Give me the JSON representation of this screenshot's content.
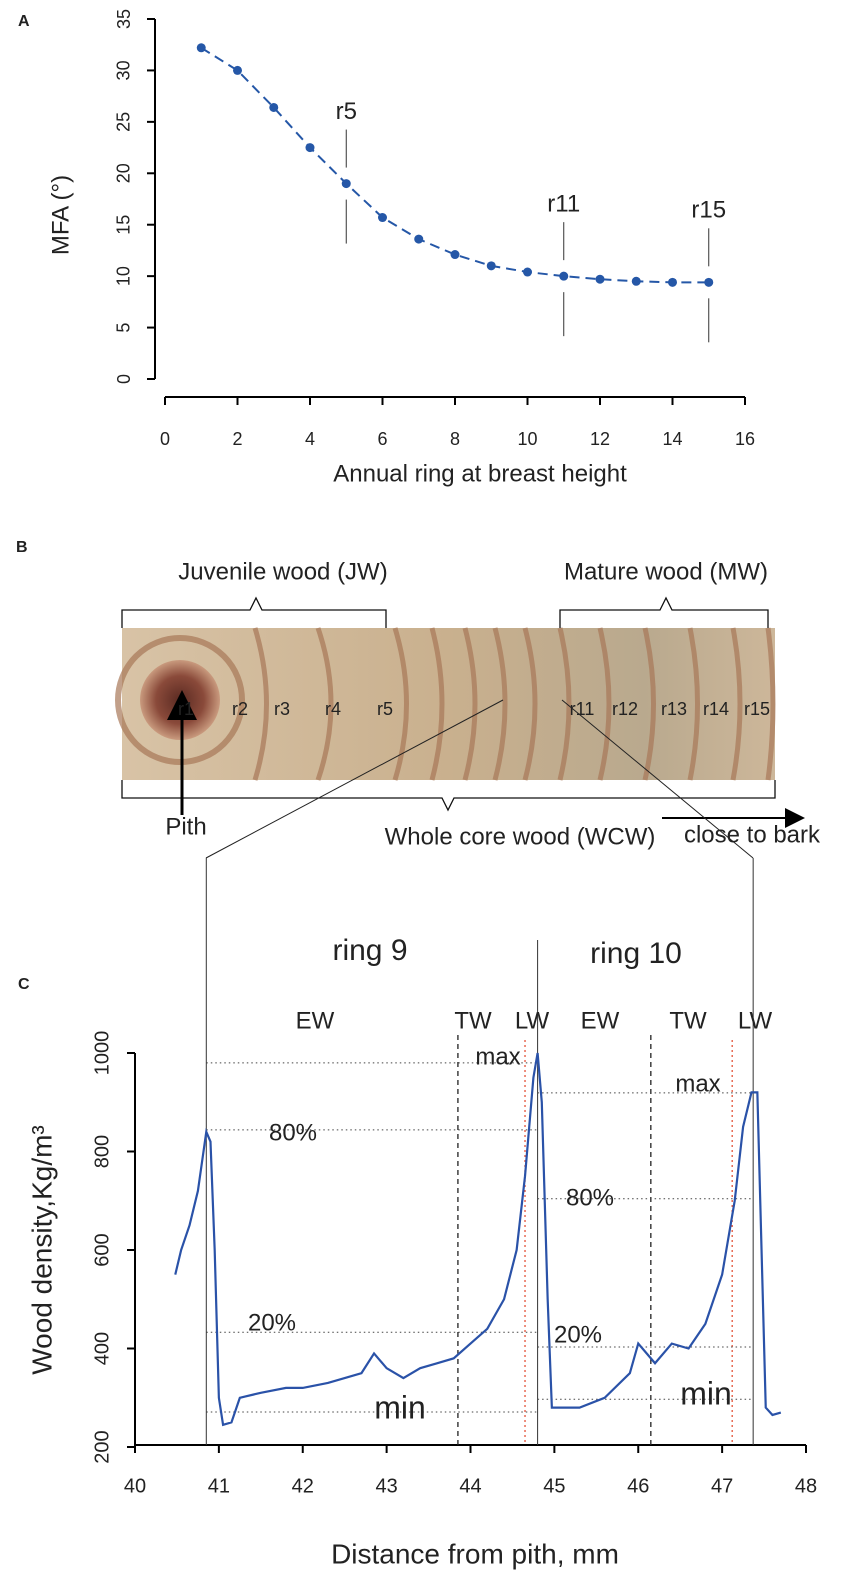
{
  "chart_data": [
    {
      "type": "line",
      "panel_label": "A",
      "ylabel": "MFA (°)",
      "xlabel": "Annual ring at breast height",
      "x": [
        1,
        2,
        3,
        4,
        5,
        6,
        7,
        8,
        9,
        10,
        11,
        12,
        13,
        14,
        15
      ],
      "values": [
        32.2,
        30.0,
        26.4,
        22.5,
        19.0,
        15.7,
        13.6,
        12.1,
        11.0,
        10.4,
        10.0,
        9.7,
        9.5,
        9.4,
        9.4
      ],
      "color": "#2557a7",
      "markers": true,
      "line_style": "dashed",
      "xlim": [
        0,
        16
      ],
      "xticks": [
        0,
        2,
        4,
        6,
        8,
        10,
        12,
        14,
        16
      ],
      "ylim": [
        0,
        35
      ],
      "yticks": [
        0,
        5,
        10,
        15,
        20,
        25,
        30,
        35
      ],
      "annotations": [
        {
          "label": "r5",
          "x": 5
        },
        {
          "label": "r11",
          "x": 11
        },
        {
          "label": "r15",
          "x": 15
        }
      ]
    },
    {
      "type": "line",
      "panel_label": "C",
      "ylabel": "Wood density,Kg/m³",
      "xlabel": "Distance from pith, mm",
      "x": [
        40.48,
        40.55,
        40.65,
        40.75,
        40.8,
        40.85,
        40.9,
        40.95,
        41.0,
        41.05,
        41.15,
        41.25,
        41.5,
        41.8,
        42.0,
        42.3,
        42.5,
        42.7,
        42.85,
        43.0,
        43.2,
        43.4,
        43.6,
        43.8,
        44.0,
        44.2,
        44.4,
        44.55,
        44.65,
        44.75,
        44.8,
        44.85,
        44.92,
        44.97,
        45.1,
        45.3,
        45.6,
        45.9,
        46.0,
        46.2,
        46.4,
        46.6,
        46.8,
        47.0,
        47.15,
        47.25,
        47.35,
        47.42,
        47.47,
        47.52,
        47.6,
        47.7
      ],
      "values": [
        550,
        600,
        650,
        720,
        780,
        840,
        820,
        600,
        300,
        245,
        250,
        300,
        310,
        320,
        320,
        330,
        340,
        350,
        390,
        360,
        340,
        360,
        370,
        380,
        410,
        440,
        500,
        600,
        750,
        950,
        1000,
        900,
        500,
        280,
        280,
        280,
        300,
        350,
        410,
        370,
        410,
        400,
        450,
        550,
        700,
        850,
        920,
        920,
        600,
        280,
        265,
        270
      ],
      "color": "#2a52a8",
      "markers": false,
      "line_style": "solid",
      "xlim": [
        40,
        48
      ],
      "xticks": [
        40,
        41,
        42,
        43,
        44,
        45,
        46,
        47,
        48
      ],
      "ylim": [
        200,
        1000
      ],
      "yticks": [
        200,
        400,
        600,
        800,
        1000
      ],
      "ring_labels": [
        "ring 9",
        "ring 10"
      ],
      "zone_labels": [
        "EW",
        "TW",
        "LW",
        "EW",
        "TW",
        "LW"
      ],
      "vlines": [
        {
          "x": 40.85,
          "style": "solid"
        },
        {
          "x": 43.85,
          "style": "dashed"
        },
        {
          "x": 44.65,
          "style": "dotted-red"
        },
        {
          "x": 44.8,
          "style": "solid"
        },
        {
          "x": 46.15,
          "style": "dashed"
        },
        {
          "x": 47.12,
          "style": "dotted-red"
        },
        {
          "x": 47.37,
          "style": "solid"
        }
      ],
      "hlines": [
        {
          "y": 980,
          "from": 40.85,
          "to": 44.8,
          "label": "max"
        },
        {
          "y": 844,
          "from": 40.85,
          "to": 44.8,
          "label": "80%"
        },
        {
          "y": 433,
          "from": 40.85,
          "to": 44.8,
          "label": "20%"
        },
        {
          "y": 271,
          "from": 40.85,
          "to": 44.8,
          "label": "min"
        },
        {
          "y": 919,
          "from": 44.8,
          "to": 47.37,
          "label": "max"
        },
        {
          "y": 704,
          "from": 44.8,
          "to": 47.37,
          "label": "80%"
        },
        {
          "y": 403,
          "from": 44.8,
          "to": 47.37,
          "label": "20%"
        },
        {
          "y": 297,
          "from": 44.8,
          "to": 47.37,
          "label": "min"
        }
      ]
    }
  ],
  "core_image": {
    "panel_label": "B",
    "juvenile": "Juvenile wood (JW)",
    "mature": "Mature wood (MW)",
    "whole": "Whole core wood (WCW)",
    "bark": "close to bark",
    "pith": "Pith",
    "rings": [
      "r1",
      "r2",
      "r3",
      "r4",
      "r5",
      "r11",
      "r12",
      "r13",
      "r14",
      "r15"
    ]
  }
}
